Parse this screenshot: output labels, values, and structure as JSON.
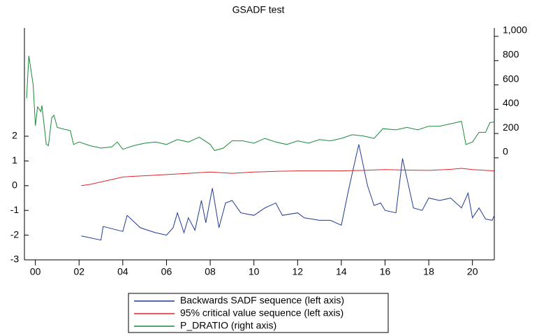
{
  "chart_data": {
    "type": "line",
    "title": "GSADF test",
    "xlim": [
      1999.5,
      2021
    ],
    "xticks": [
      {
        "value": 2000,
        "label": "00"
      },
      {
        "value": 2002,
        "label": "02"
      },
      {
        "value": 2004,
        "label": "04"
      },
      {
        "value": 2006,
        "label": "06"
      },
      {
        "value": 2008,
        "label": "08"
      },
      {
        "value": 2010,
        "label": "10"
      },
      {
        "value": 2012,
        "label": "12"
      },
      {
        "value": 2014,
        "label": "14"
      },
      {
        "value": 2016,
        "label": "16"
      },
      {
        "value": 2018,
        "label": "18"
      },
      {
        "value": 2020,
        "label": "20"
      }
    ],
    "ylim": [
      -3,
      6.04
    ],
    "yticks": [
      -3,
      -2,
      -1,
      0,
      1,
      2
    ],
    "y2lim": [
      -840,
      1000
    ],
    "y2ticks": [
      0,
      200,
      400,
      600,
      800,
      {
        "value": 1000,
        "label": "1,000"
      }
    ],
    "series": [
      {
        "name": "Backwards SADF sequence (left axis)",
        "color": "#1f3a93",
        "axis": "y",
        "x": [
          2002.1,
          2003,
          2003.1,
          2004,
          2004.2,
          2004.8,
          2005.5,
          2006,
          2006.3,
          2006.5,
          2006.8,
          2007,
          2007.3,
          2007.6,
          2007.8,
          2008.1,
          2008.4,
          2008.7,
          2009,
          2009.4,
          2010,
          2010.5,
          2011,
          2011.3,
          2012,
          2012.3,
          2013,
          2013.5,
          2014,
          2014.3,
          2014.5,
          2014.8,
          2015.2,
          2015.5,
          2015.8,
          2016,
          2016.5,
          2016.8,
          2017,
          2017.3,
          2017.7,
          2018,
          2018.5,
          2019,
          2019.5,
          2019.8,
          2020,
          2020.3,
          2020.6,
          2020.9,
          2021
        ],
        "values": [
          -2.03,
          -2.2,
          -1.65,
          -1.85,
          -1.2,
          -1.7,
          -1.9,
          -2.0,
          -1.7,
          -1.1,
          -1.9,
          -1.3,
          -1.8,
          -0.6,
          -1.5,
          -0.1,
          -1.7,
          -0.7,
          -0.6,
          -1.1,
          -1.2,
          -0.9,
          -0.7,
          -1.2,
          -1.1,
          -1.3,
          -1.4,
          -1.4,
          -1.6,
          -0.3,
          0.5,
          1.67,
          0.0,
          -0.8,
          -0.7,
          -1.0,
          -1.1,
          1.1,
          0.3,
          -0.9,
          -1.0,
          -0.5,
          -0.6,
          -0.5,
          -0.9,
          -0.3,
          -1.3,
          -0.9,
          -1.35,
          -1.4,
          -1.2
        ]
      },
      {
        "name": "95% critical value sequence (left axis)",
        "color": "#e0262b",
        "axis": "y",
        "x": [
          2002.1,
          2002.5,
          2003,
          2003.5,
          2004,
          2004.5,
          2005,
          2006,
          2007,
          2008,
          2009,
          2010,
          2011,
          2012,
          2013,
          2014,
          2015,
          2016,
          2017,
          2018,
          2019,
          2019.5,
          2020,
          2021
        ],
        "values": [
          0.0,
          0.05,
          0.15,
          0.25,
          0.35,
          0.38,
          0.4,
          0.45,
          0.5,
          0.55,
          0.5,
          0.55,
          0.58,
          0.6,
          0.6,
          0.6,
          0.62,
          0.65,
          0.63,
          0.62,
          0.66,
          0.7,
          0.65,
          0.6
        ]
      },
      {
        "name": "P_DRATIO (right axis)",
        "color": "#1a8a3a",
        "axis": "y2",
        "x": [
          1999.6,
          1999.7,
          1999.9,
          2000.0,
          2000.1,
          2000.25,
          2000.3,
          2000.5,
          2000.6,
          2000.75,
          2000.85,
          2001.0,
          2001.3,
          2001.6,
          2001.75,
          2002.0,
          2002.5,
          2003.0,
          2003.5,
          2003.75,
          2004.0,
          2004.5,
          2005,
          2005.5,
          2006,
          2006.5,
          2007,
          2007.5,
          2008,
          2008.2,
          2008.6,
          2009,
          2009.5,
          2010,
          2010.5,
          2011,
          2011.5,
          2012,
          2012.5,
          2013,
          2013.5,
          2014,
          2014.5,
          2015,
          2015.5,
          2015.9,
          2016.5,
          2017,
          2017.5,
          2018,
          2018.5,
          2019,
          2019.5,
          2019.7,
          2020,
          2020.3,
          2020.6,
          2020.8,
          2021
        ],
        "values": [
          490,
          840,
          600,
          264,
          420,
          380,
          430,
          110,
          100,
          330,
          350,
          250,
          236,
          224,
          110,
          130,
          100,
          80,
          90,
          130,
          70,
          100,
          120,
          130,
          110,
          150,
          130,
          170,
          110,
          60,
          80,
          140,
          140,
          120,
          160,
          130,
          110,
          140,
          120,
          150,
          140,
          160,
          190,
          180,
          160,
          240,
          230,
          250,
          230,
          260,
          260,
          280,
          300,
          110,
          130,
          210,
          210,
          290,
          295
        ]
      }
    ]
  }
}
